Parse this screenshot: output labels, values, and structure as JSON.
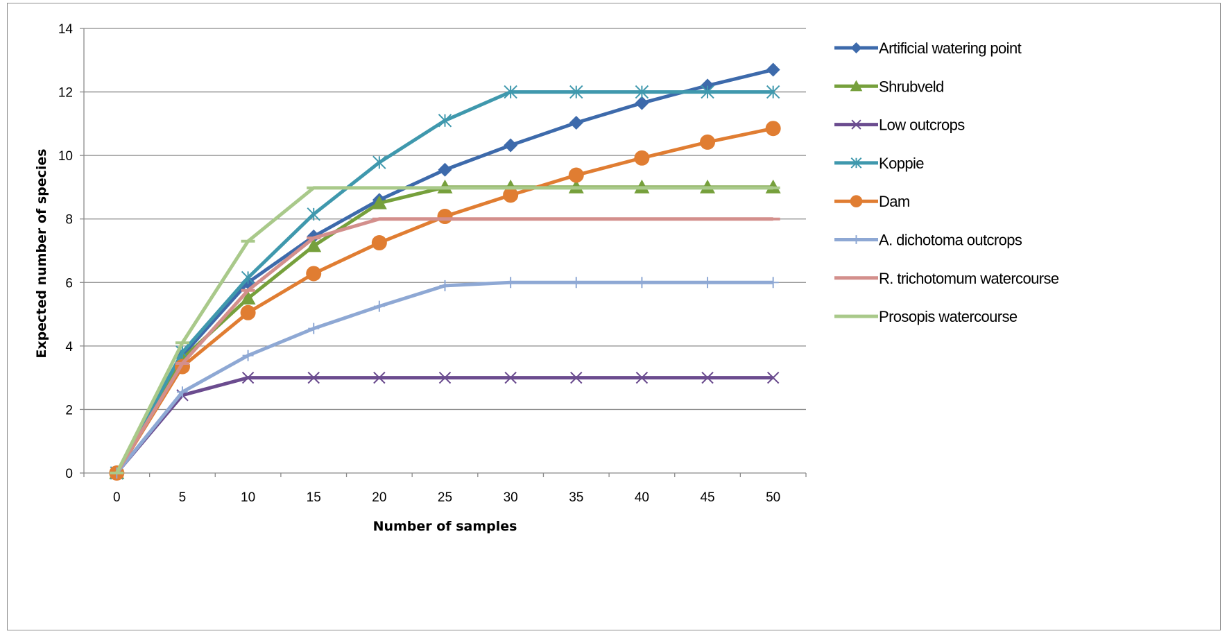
{
  "chart_data": {
    "type": "line",
    "title": "",
    "xlabel": "Number of samples",
    "ylabel": "Expected number of species",
    "x": [
      0,
      5,
      10,
      15,
      20,
      25,
      30,
      35,
      40,
      45,
      50
    ],
    "xlim": [
      0,
      50
    ],
    "ylim": [
      0,
      14
    ],
    "yticks": [
      0,
      2,
      4,
      6,
      8,
      10,
      12,
      14
    ],
    "grid": "horizontal",
    "legend_position": "right",
    "series": [
      {
        "name": "Artificial watering point",
        "color": "#3d6aab",
        "marker": "diamond",
        "values": [
          0,
          3.7,
          6.0,
          7.45,
          8.6,
          9.55,
          10.32,
          11.03,
          11.65,
          12.2,
          12.7
        ]
      },
      {
        "name": "Shrubveld",
        "color": "#76a03c",
        "marker": "triangle",
        "values": [
          0,
          3.6,
          5.5,
          7.15,
          8.5,
          9.0,
          9.0,
          9.0,
          9.0,
          9.0,
          9.0
        ]
      },
      {
        "name": "Low outcrops",
        "color": "#6b4c8f",
        "marker": "x",
        "values": [
          0,
          2.45,
          3.0,
          3.0,
          3.0,
          3.0,
          3.0,
          3.0,
          3.0,
          3.0,
          3.0
        ]
      },
      {
        "name": "Koppie",
        "color": "#3f98ad",
        "marker": "asterisk",
        "values": [
          0,
          3.8,
          6.15,
          8.15,
          9.78,
          11.1,
          12.0,
          12.0,
          12.0,
          12.0,
          12.0
        ]
      },
      {
        "name": "Dam",
        "color": "#e07d32",
        "marker": "circle",
        "values": [
          0,
          3.35,
          5.05,
          6.28,
          7.25,
          8.08,
          8.75,
          9.38,
          9.92,
          10.42,
          10.85
        ]
      },
      {
        "name": "A. dichotoma outcrops",
        "color": "#8ea8d4",
        "marker": "plus",
        "values": [
          0,
          2.55,
          3.7,
          4.55,
          5.25,
          5.9,
          6.0,
          6.0,
          6.0,
          6.0,
          6.0
        ]
      },
      {
        "name": "R. trichotomum watercourse",
        "color": "#d38f8c",
        "marker": "dash",
        "values": [
          0,
          3.45,
          5.75,
          7.4,
          8.0,
          8.0,
          8.0,
          8.0,
          8.0,
          8.0,
          8.0
        ]
      },
      {
        "name": "Prosopis watercourse",
        "color": "#a9c98a",
        "marker": "dash",
        "values": [
          0,
          4.1,
          7.3,
          8.98,
          8.98,
          8.98,
          8.98,
          8.98,
          8.98,
          8.98,
          8.98
        ]
      }
    ]
  }
}
